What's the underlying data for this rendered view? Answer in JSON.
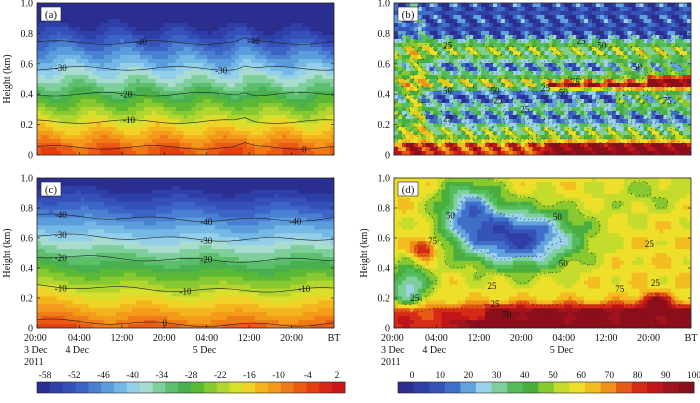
{
  "chart_data": [
    {
      "type": "heatmap",
      "panel_label": "(a)",
      "ylabel": "Height (km)",
      "y_range": [
        0,
        1.0
      ],
      "y_ticks": [
        "0",
        "0.2",
        "0.4",
        "0.6",
        "0.8",
        "1.0"
      ],
      "x_tick_labels": [],
      "colorscale": "temperature",
      "contours": [
        {
          "level": "-40",
          "h": 0.74,
          "label_x": [
            0.35,
            0.73
          ]
        },
        {
          "level": "-30",
          "h": 0.57,
          "label_x": [
            0.08,
            0.62
          ]
        },
        {
          "level": "-20",
          "h": 0.4,
          "label_x": [
            0.3
          ]
        },
        {
          "level": "-10",
          "h": 0.22,
          "label_x": [
            0.31
          ]
        },
        {
          "level": "0",
          "h": 0.05,
          "label_x": [
            0.9
          ]
        }
      ]
    },
    {
      "type": "heatmap",
      "panel_label": "(b)",
      "ylabel": "",
      "y_range": [
        0,
        1.0
      ],
      "y_ticks": [
        "0",
        "0.2",
        "0.4",
        "0.6",
        "0.8",
        "1.0"
      ],
      "x_tick_labels": [],
      "colorscale": "humidity",
      "contour_labels": [
        "25",
        "25",
        "50",
        "50",
        "25",
        "50",
        "25",
        "75",
        "50",
        "25",
        "50",
        "75",
        "25"
      ]
    },
    {
      "type": "heatmap",
      "panel_label": "(c)",
      "ylabel": "Height (km)",
      "y_range": [
        0,
        1.0
      ],
      "y_ticks": [
        "0",
        "0.2",
        "0.4",
        "0.6",
        "0.8",
        "1.0"
      ],
      "x_tick_labels": [
        "20:00",
        "04:00",
        "12:00",
        "20:00",
        "04:00",
        "12:00",
        "20:00",
        "BT"
      ],
      "x_sub_labels": [
        "3 Dec",
        "4 Dec",
        "5 Dec"
      ],
      "year_label": "2011",
      "colorscale": "temperature",
      "contours": [
        {
          "level": "-40",
          "h": 0.74,
          "label_x": [
            0.08,
            0.57,
            0.87
          ]
        },
        {
          "level": "-30",
          "h": 0.61,
          "label_x": [
            0.08,
            0.57
          ]
        },
        {
          "level": "-20",
          "h": 0.47,
          "label_x": [
            0.08,
            0.57
          ]
        },
        {
          "level": "-10",
          "h": 0.27,
          "label_x": [
            0.08,
            0.5,
            0.9
          ]
        },
        {
          "level": "0",
          "h": 0.04,
          "label_x": [
            0.43
          ]
        }
      ]
    },
    {
      "type": "heatmap",
      "panel_label": "(d)",
      "ylabel": "Height (km)",
      "y_range": [
        0,
        1.0
      ],
      "y_ticks": [
        "0",
        "0.2",
        "0.4",
        "0.6",
        "0.8",
        "1.0"
      ],
      "x_tick_labels": [
        "20:00",
        "04:00",
        "12:00",
        "20:00",
        "04:00",
        "12:00",
        "20:00",
        "BT"
      ],
      "x_sub_labels": [
        "3 Dec",
        "4 Dec",
        "5 Dec"
      ],
      "year_label": "2011",
      "colorscale": "humidity",
      "contour_labels": [
        "75",
        "50",
        "50",
        "25",
        "25",
        "50",
        "25",
        "25",
        "25",
        "75",
        "50"
      ]
    }
  ],
  "colorbars": [
    {
      "name": "temperature",
      "labels": [
        "-58",
        "-52",
        "-46",
        "-40",
        "-34",
        "-28",
        "-22",
        "-16",
        "-10",
        "-4",
        "2"
      ],
      "colors": [
        "#2a2f8f",
        "#2f3fa8",
        "#3551b9",
        "#3b64c6",
        "#4a7fd1",
        "#5b9cdd",
        "#75b8e6",
        "#93cfe9",
        "#a8dcd0",
        "#7fcf9c",
        "#5cbf6d",
        "#49b04f",
        "#5cb935",
        "#86c930",
        "#b2d62f",
        "#d8df2d",
        "#f1d226",
        "#f4b41e",
        "#f39a1a",
        "#ef7a17",
        "#ea5b14",
        "#e33f13",
        "#d92515",
        "#cc1717"
      ]
    },
    {
      "name": "humidity",
      "labels": [
        "0",
        "10",
        "20",
        "30",
        "40",
        "50",
        "60",
        "70",
        "80",
        "90",
        "100"
      ],
      "colors": [
        "#2b2e8c",
        "#2f3ea5",
        "#3653b8",
        "#3f6fc8",
        "#62a3dd",
        "#9bd2ea",
        "#7fcf9c",
        "#55bc5e",
        "#4aae3e",
        "#88c92f",
        "#c6dc2c",
        "#eedf2a",
        "#f3bd21",
        "#ef9118",
        "#e65a15",
        "#d62b16",
        "#c0161a",
        "#a1141d",
        "#8b0f1a"
      ]
    }
  ]
}
